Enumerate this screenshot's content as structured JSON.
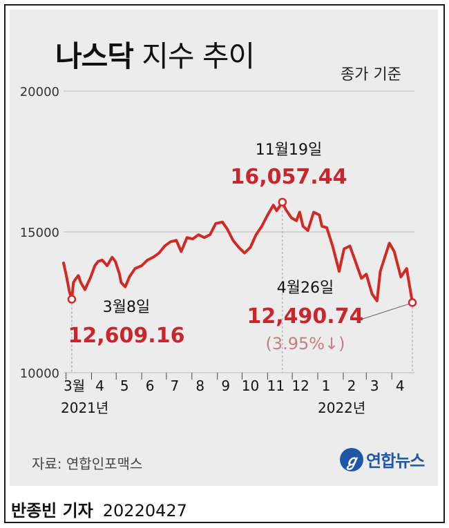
{
  "header": {
    "title_bold": "나스닥",
    "title_rest": "지수 추이",
    "basis": "종가 기준"
  },
  "chart_data": {
    "type": "line",
    "title": "나스닥 지수 추이",
    "subtitle": "종가 기준",
    "ylim": [
      10000,
      20000
    ],
    "y_ticks": [
      "20000",
      "15000",
      "10000"
    ],
    "x_ticks": [
      "3월",
      "4",
      "5",
      "6",
      "7",
      "8",
      "9",
      "10",
      "11",
      "12",
      "1",
      "2",
      "3",
      "4"
    ],
    "year_labels": [
      "2021년",
      "2022년"
    ],
    "grid": true,
    "series": [
      {
        "x": [
          "2021-02-26",
          "2021-03-01",
          "2021-03-03",
          "2021-03-05",
          "2021-03-08",
          "2021-03-10",
          "2021-03-12",
          "2021-03-16",
          "2021-03-19",
          "2021-03-24",
          "2021-03-31",
          "2021-04-05",
          "2021-04-09",
          "2021-04-14",
          "2021-04-20",
          "2021-04-26",
          "2021-04-30",
          "2021-05-05",
          "2021-05-07",
          "2021-05-12",
          "2021-05-17",
          "2021-05-24",
          "2021-06-01",
          "2021-06-08",
          "2021-06-15",
          "2021-06-22",
          "2021-06-29",
          "2021-07-06",
          "2021-07-13",
          "2021-07-19",
          "2021-07-26",
          "2021-08-02",
          "2021-08-09",
          "2021-08-16",
          "2021-08-23",
          "2021-08-30",
          "2021-09-07",
          "2021-09-13",
          "2021-09-20",
          "2021-09-27",
          "2021-10-04",
          "2021-10-11",
          "2021-10-18",
          "2021-10-25",
          "2021-11-01",
          "2021-11-08",
          "2021-11-12",
          "2021-11-19",
          "2021-11-23",
          "2021-11-30",
          "2021-12-06",
          "2021-12-10",
          "2021-12-14",
          "2021-12-20",
          "2021-12-27",
          "2022-01-03",
          "2022-01-06",
          "2022-01-12",
          "2022-01-19",
          "2022-01-27",
          "2022-02-02",
          "2022-02-09",
          "2022-02-14",
          "2022-02-23",
          "2022-03-01",
          "2022-03-08",
          "2022-03-14",
          "2022-03-18",
          "2022-03-29",
          "2022-04-04",
          "2022-04-12",
          "2022-04-19",
          "2022-04-26"
        ],
        "values": [
          13900,
          13500,
          13200,
          12900,
          12609,
          13200,
          13300,
          13450,
          13200,
          12950,
          13400,
          13800,
          13950,
          14000,
          13800,
          14100,
          13950,
          13500,
          13200,
          13050,
          13400,
          13700,
          13800,
          14000,
          14100,
          14250,
          14500,
          14650,
          14700,
          14300,
          14800,
          14750,
          14900,
          14800,
          14900,
          15300,
          15350,
          15100,
          14700,
          14450,
          14250,
          14450,
          14900,
          15200,
          15600,
          15950,
          15750,
          16057,
          15800,
          15500,
          15400,
          15700,
          15200,
          15050,
          15700,
          15600,
          15200,
          15150,
          14500,
          13600,
          14400,
          14500,
          14100,
          13350,
          13500,
          12800,
          12550,
          13600,
          14600,
          14300,
          13400,
          13700,
          12490.74
        ]
      }
    ],
    "annotations": [
      {
        "date": "3월8일",
        "value": "12,609.16"
      },
      {
        "date": "11월19일",
        "value": "16,057.44"
      },
      {
        "date": "4월26일",
        "value": "12,490.74",
        "change": "(3.95%↓)"
      }
    ],
    "colors": {
      "line": "#d12a24",
      "peak_label": "#c8262c",
      "change_label": "#c47d89",
      "grid": "#b8b8b8"
    }
  },
  "footer": {
    "source": "자료: 연합인포맥스",
    "logo_text": "연합뉴스",
    "author": "반종빈 기자",
    "date": "20220427"
  }
}
